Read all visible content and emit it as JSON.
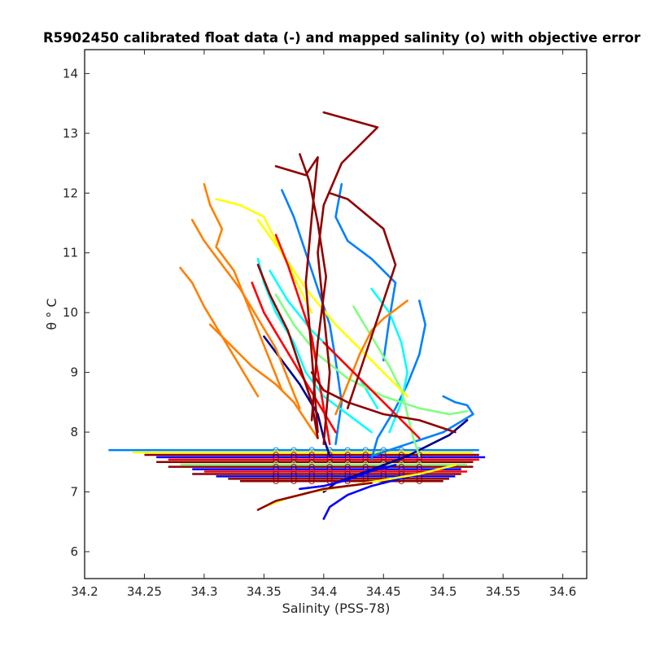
{
  "chart_data": {
    "type": "line",
    "title": "R5902450 calibrated float data (-) and mapped salinity (o) with objective error",
    "xlabel": "Salinity (PSS-78)",
    "ylabel": "θ ° C",
    "xlim": [
      34.2,
      34.62
    ],
    "ylim": [
      5.55,
      14.4
    ],
    "x_ticks": [
      "34.2",
      "34.25",
      "34.3",
      "34.35",
      "34.4",
      "34.45",
      "34.5",
      "34.55",
      "34.6"
    ],
    "y_ticks": [
      "6",
      "7",
      "8",
      "9",
      "10",
      "11",
      "12",
      "13",
      "14"
    ],
    "grid": false,
    "legend": "none",
    "colormap": "jet",
    "colors": [
      "#00008f",
      "#0000ff",
      "#0080ff",
      "#00ffff",
      "#80ff80",
      "#ffff00",
      "#ff8000",
      "#ff0000",
      "#8f0000"
    ],
    "series": [
      {
        "color": "#00008f",
        "x": [
          34.52,
          34.505,
          34.49,
          34.47,
          34.45,
          34.43,
          34.41,
          34.4
        ],
        "y": [
          8.2,
          7.95,
          7.8,
          7.6,
          7.45,
          7.3,
          7.15,
          7.0
        ]
      },
      {
        "color": "#00008f",
        "x": [
          34.35,
          34.365,
          34.38,
          34.395,
          34.4,
          34.405
        ],
        "y": [
          9.6,
          9.2,
          8.8,
          8.3,
          7.9,
          7.6
        ]
      },
      {
        "color": "#0000ff",
        "x": [
          34.4,
          34.405,
          34.42,
          34.44,
          34.46,
          34.48
        ],
        "y": [
          6.55,
          6.75,
          6.95,
          7.1,
          7.2,
          7.3
        ]
      },
      {
        "color": "#0000ff",
        "x": [
          34.38,
          34.4,
          34.42,
          34.44,
          34.46
        ],
        "y": [
          7.05,
          7.1,
          7.2,
          7.35,
          7.45
        ]
      },
      {
        "color": "#0080ff",
        "x": [
          34.48,
          34.485,
          34.48,
          34.47,
          34.46,
          34.445,
          34.44
        ],
        "y": [
          10.2,
          9.8,
          9.3,
          8.8,
          8.4,
          7.9,
          7.55
        ]
      },
      {
        "color": "#0080ff",
        "x": [
          34.5,
          34.51,
          34.52,
          34.525,
          34.5,
          34.47,
          34.44
        ],
        "y": [
          8.6,
          8.5,
          8.45,
          8.3,
          8.0,
          7.8,
          7.6
        ]
      },
      {
        "color": "#0080ff",
        "x": [
          34.365,
          34.375,
          34.385,
          34.395,
          34.405,
          34.41,
          34.415,
          34.41
        ],
        "y": [
          12.05,
          11.6,
          11.0,
          10.4,
          9.8,
          9.2,
          8.5,
          7.8
        ]
      },
      {
        "color": "#0080ff",
        "x": [
          34.415,
          34.41,
          34.42,
          34.44,
          34.46,
          34.455,
          34.45
        ],
        "y": [
          12.15,
          11.6,
          11.2,
          10.9,
          10.5,
          9.9,
          9.2
        ]
      },
      {
        "color": "#00ffff",
        "x": [
          34.345,
          34.35,
          34.36,
          34.375,
          34.385,
          34.4,
          34.42,
          34.44
        ],
        "y": [
          10.9,
          10.5,
          10.0,
          9.5,
          9.0,
          8.6,
          8.3,
          8.0
        ]
      },
      {
        "color": "#00ffff",
        "x": [
          34.44,
          34.455,
          34.465,
          34.47,
          34.465,
          34.455
        ],
        "y": [
          10.4,
          10.0,
          9.5,
          9.0,
          8.5,
          8.0
        ]
      },
      {
        "color": "#00ffff",
        "x": [
          34.355,
          34.37,
          34.39,
          34.41,
          34.43,
          34.445
        ],
        "y": [
          10.7,
          10.2,
          9.7,
          9.3,
          8.9,
          8.4
        ]
      },
      {
        "color": "#80ff80",
        "x": [
          34.425,
          34.44,
          34.455,
          34.465,
          34.47,
          34.475,
          34.48
        ],
        "y": [
          10.1,
          9.6,
          9.1,
          8.7,
          8.3,
          7.9,
          7.6
        ]
      },
      {
        "color": "#80ff80",
        "x": [
          34.36,
          34.375,
          34.395,
          34.42,
          34.45,
          34.48,
          34.505,
          34.52
        ],
        "y": [
          10.3,
          9.8,
          9.3,
          8.9,
          8.6,
          8.4,
          8.3,
          8.35
        ]
      },
      {
        "color": "#ffff00",
        "x": [
          34.35,
          34.37,
          34.39,
          34.42,
          34.45,
          34.48,
          34.51
        ],
        "y": [
          6.75,
          6.9,
          7.0,
          7.1,
          7.2,
          7.3,
          7.45
        ]
      },
      {
        "color": "#ffff00",
        "x": [
          34.345,
          34.365,
          34.385,
          34.41,
          34.44,
          34.47
        ],
        "y": [
          11.55,
          11.0,
          10.4,
          9.8,
          9.2,
          8.6
        ]
      },
      {
        "color": "#ffff00",
        "x": [
          34.31,
          34.33,
          34.35,
          34.36,
          34.375,
          34.39
        ],
        "y": [
          11.9,
          11.8,
          11.6,
          11.2,
          10.6,
          10.0
        ]
      },
      {
        "color": "#ff8000",
        "x": [
          34.3,
          34.305,
          34.315,
          34.31,
          34.325,
          34.335,
          34.345,
          34.355,
          34.365
        ],
        "y": [
          12.15,
          11.8,
          11.4,
          11.1,
          10.7,
          10.2,
          9.7,
          9.2,
          8.7
        ]
      },
      {
        "color": "#ff8000",
        "x": [
          34.29,
          34.3,
          34.315,
          34.33,
          34.345,
          34.36,
          34.37,
          34.38
        ],
        "y": [
          11.55,
          11.2,
          10.8,
          10.4,
          9.9,
          9.4,
          8.9,
          8.4
        ]
      },
      {
        "color": "#ff8000",
        "x": [
          34.305,
          34.32,
          34.34,
          34.36,
          34.375,
          34.385,
          34.395
        ],
        "y": [
          9.8,
          9.5,
          9.1,
          8.8,
          8.5,
          8.2,
          7.9
        ]
      },
      {
        "color": "#ff8000",
        "x": [
          34.28,
          34.29,
          34.3,
          34.315,
          34.33,
          34.345
        ],
        "y": [
          10.75,
          10.5,
          10.1,
          9.6,
          9.1,
          8.6
        ]
      },
      {
        "color": "#ff8000",
        "x": [
          34.47,
          34.45,
          34.44,
          34.43,
          34.42,
          34.41
        ],
        "y": [
          10.2,
          9.9,
          9.7,
          9.3,
          8.8,
          8.3
        ]
      },
      {
        "color": "#ff0000",
        "x": [
          34.36,
          34.37,
          34.38,
          34.39,
          34.395,
          34.4,
          34.405
        ],
        "y": [
          11.3,
          10.8,
          10.2,
          9.6,
          9.0,
          8.4,
          7.8
        ]
      },
      {
        "color": "#ff0000",
        "x": [
          34.34,
          34.35,
          34.365,
          34.38,
          34.395,
          34.41
        ],
        "y": [
          10.5,
          10.0,
          9.5,
          9.0,
          8.5,
          8.0
        ]
      },
      {
        "color": "#ff0000",
        "x": [
          34.4,
          34.42,
          34.44,
          34.46,
          34.48
        ],
        "y": [
          9.5,
          9.1,
          8.7,
          8.3,
          7.9
        ]
      },
      {
        "color": "#8f0000",
        "x": [
          34.4,
          34.445,
          34.415,
          34.4,
          34.395,
          34.4,
          34.405,
          34.4
        ],
        "y": [
          13.35,
          13.1,
          12.5,
          11.8,
          11.0,
          10.0,
          9.0,
          7.8
        ]
      },
      {
        "color": "#8f0000",
        "x": [
          34.36,
          34.385,
          34.395,
          34.39,
          34.385,
          34.39,
          34.395
        ],
        "y": [
          12.45,
          12.3,
          12.6,
          11.6,
          10.5,
          9.3,
          8.0
        ]
      },
      {
        "color": "#8f0000",
        "x": [
          34.38,
          34.388,
          34.395,
          34.402,
          34.395,
          34.39
        ],
        "y": [
          12.65,
          12.2,
          11.5,
          10.6,
          9.5,
          8.2
        ]
      },
      {
        "color": "#8f0000",
        "x": [
          34.405,
          34.42,
          34.45,
          34.46,
          34.45,
          34.44,
          34.43,
          34.42
        ],
        "y": [
          12.0,
          11.9,
          11.4,
          10.8,
          10.2,
          9.6,
          9.0,
          8.4
        ]
      },
      {
        "color": "#8f0000",
        "x": [
          34.39,
          34.4,
          34.42,
          34.45,
          34.48,
          34.51
        ],
        "y": [
          9.0,
          8.7,
          8.5,
          8.3,
          8.2,
          8.0
        ]
      },
      {
        "color": "#8f0000",
        "x": [
          34.345,
          34.355,
          34.37,
          34.38,
          34.39,
          34.395
        ],
        "y": [
          10.8,
          10.3,
          9.7,
          9.1,
          8.5,
          7.9
        ]
      },
      {
        "color": "#8f0000",
        "x": [
          34.345,
          34.36,
          34.38,
          34.4,
          34.42,
          34.44
        ],
        "y": [
          6.7,
          6.85,
          6.95,
          7.05,
          7.1,
          7.15
        ]
      }
    ],
    "mapped_levels": [
      {
        "y": 7.7,
        "xmin": 34.22,
        "xmax": 34.53,
        "color": "#0080ff"
      },
      {
        "y": 7.66,
        "xmin": 34.24,
        "xmax": 34.525,
        "color": "#ffff00"
      },
      {
        "y": 7.62,
        "xmin": 34.25,
        "xmax": 34.53,
        "color": "#8f0000"
      },
      {
        "y": 7.58,
        "xmin": 34.26,
        "xmax": 34.535,
        "color": "#0000ff"
      },
      {
        "y": 7.54,
        "xmin": 34.27,
        "xmax": 34.53,
        "color": "#ff0000"
      },
      {
        "y": 7.5,
        "xmin": 34.26,
        "xmax": 34.525,
        "color": "#8f0000"
      },
      {
        "y": 7.46,
        "xmin": 34.28,
        "xmax": 34.52,
        "color": "#80ff80"
      },
      {
        "y": 7.42,
        "xmin": 34.27,
        "xmax": 34.525,
        "color": "#8f0000"
      },
      {
        "y": 7.38,
        "xmin": 34.29,
        "xmax": 34.515,
        "color": "#0000ff"
      },
      {
        "y": 7.34,
        "xmin": 34.3,
        "xmax": 34.52,
        "color": "#ff0000"
      },
      {
        "y": 7.3,
        "xmin": 34.29,
        "xmax": 34.515,
        "color": "#8f0000"
      },
      {
        "y": 7.26,
        "xmin": 34.31,
        "xmax": 34.51,
        "color": "#0000ff"
      },
      {
        "y": 7.22,
        "xmin": 34.32,
        "xmax": 34.505,
        "color": "#8f0000"
      },
      {
        "y": 7.18,
        "xmin": 34.33,
        "xmax": 34.5,
        "color": "#8f0000"
      }
    ]
  }
}
